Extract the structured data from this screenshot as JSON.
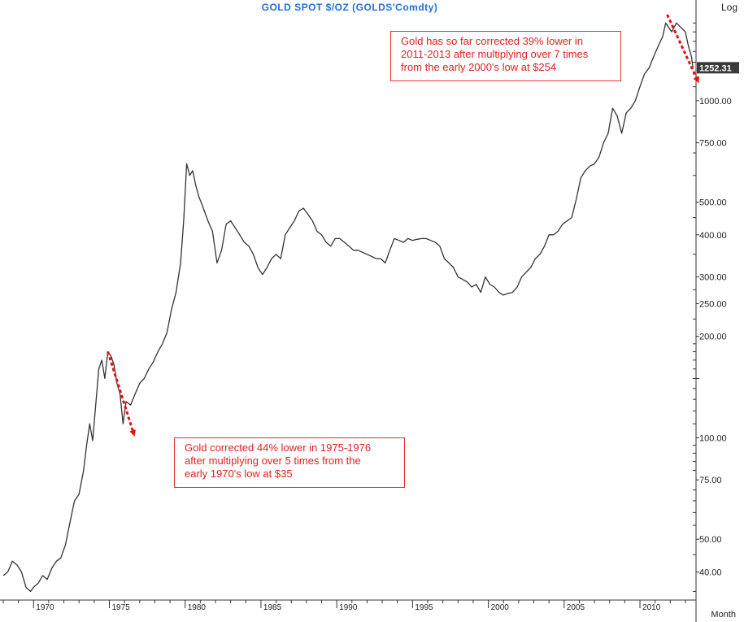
{
  "chart_data": {
    "type": "line",
    "title": "GOLD  SPOT  $/OZ  (GOLDS'Comdty)",
    "scale_label": "Log",
    "x_axis_label": "Month",
    "y_scale": "log",
    "ylim": [
      33,
      1800
    ],
    "xlim": [
      1968.0,
      2013.7
    ],
    "y_ticks": [
      40,
      50,
      75,
      100,
      150,
      200,
      250,
      300,
      400,
      500,
      750,
      1000
    ],
    "y_tick_labels": [
      "40.00",
      "50.00",
      "75.00",
      "100.00",
      "",
      "200.00",
      "250.00",
      "300.00",
      "400.00",
      "500.00",
      "750.00",
      "1000.00"
    ],
    "x_ticks": [
      1970,
      1975,
      1980,
      1985,
      1990,
      1995,
      2000,
      2005,
      2010
    ],
    "x_tick_labels": [
      "1970",
      "1975",
      "1980",
      "1985",
      "1990",
      "1995",
      "2000",
      "2005",
      "2010"
    ],
    "last_value_label": "1252.31",
    "last_value": 1252.31,
    "series": [
      {
        "x": [
          1968.0,
          1968.3,
          1968.6,
          1968.9,
          1969.2,
          1969.5,
          1969.8,
          1970.0,
          1970.3,
          1970.6,
          1970.9,
          1971.2,
          1971.5,
          1971.8,
          1972.1,
          1972.4,
          1972.7,
          1973.0,
          1973.3,
          1973.5,
          1973.7,
          1973.9,
          1974.1,
          1974.3,
          1974.5,
          1974.7,
          1974.9,
          1975.1,
          1975.3,
          1975.5,
          1975.7,
          1975.9,
          1976.1,
          1976.4,
          1976.7,
          1977.0,
          1977.3,
          1977.6,
          1977.9,
          1978.2,
          1978.5,
          1978.8,
          1979.1,
          1979.4,
          1979.7,
          1979.9,
          1980.1,
          1980.3,
          1980.5,
          1980.7,
          1980.9,
          1981.2,
          1981.5,
          1981.8,
          1982.1,
          1982.4,
          1982.7,
          1983.0,
          1983.3,
          1983.6,
          1983.9,
          1984.2,
          1984.5,
          1984.8,
          1985.1,
          1985.4,
          1985.7,
          1986.0,
          1986.3,
          1986.6,
          1986.9,
          1987.2,
          1987.5,
          1987.8,
          1988.1,
          1988.4,
          1988.7,
          1989.0,
          1989.3,
          1989.6,
          1989.9,
          1990.2,
          1990.5,
          1990.8,
          1991.1,
          1991.4,
          1991.7,
          1992.0,
          1992.3,
          1992.6,
          1992.9,
          1993.2,
          1993.5,
          1993.8,
          1994.1,
          1994.4,
          1994.7,
          1995.0,
          1995.3,
          1995.6,
          1995.9,
          1996.2,
          1996.5,
          1996.8,
          1997.1,
          1997.4,
          1997.7,
          1998.0,
          1998.3,
          1998.6,
          1998.9,
          1999.2,
          1999.5,
          1999.8,
          2000.1,
          2000.4,
          2000.7,
          2001.0,
          2001.3,
          2001.6,
          2001.9,
          2002.2,
          2002.5,
          2002.8,
          2003.1,
          2003.4,
          2003.7,
          2004.0,
          2004.3,
          2004.6,
          2004.9,
          2005.2,
          2005.5,
          2005.8,
          2006.1,
          2006.4,
          2006.7,
          2007.0,
          2007.3,
          2007.6,
          2007.9,
          2008.2,
          2008.5,
          2008.8,
          2009.1,
          2009.4,
          2009.7,
          2010.0,
          2010.3,
          2010.6,
          2010.9,
          2011.2,
          2011.5,
          2011.7,
          2011.9,
          2012.1,
          2012.4,
          2012.7,
          2013.0,
          2013.2,
          2013.4,
          2013.5
        ],
        "values": [
          39,
          40,
          43,
          42,
          40,
          36,
          35,
          36,
          37,
          39,
          38,
          41,
          43,
          44,
          48,
          56,
          65,
          68,
          80,
          95,
          110,
          98,
          125,
          160,
          170,
          150,
          180,
          175,
          165,
          145,
          135,
          110,
          128,
          125,
          135,
          145,
          150,
          160,
          168,
          180,
          190,
          205,
          240,
          270,
          330,
          440,
          650,
          600,
          620,
          560,
          520,
          480,
          440,
          410,
          330,
          360,
          430,
          440,
          420,
          400,
          380,
          370,
          350,
          320,
          305,
          320,
          340,
          350,
          340,
          400,
          420,
          440,
          470,
          480,
          460,
          440,
          410,
          400,
          380,
          370,
          390,
          390,
          380,
          370,
          360,
          360,
          355,
          350,
          345,
          340,
          340,
          330,
          360,
          390,
          385,
          380,
          390,
          385,
          388,
          390,
          390,
          385,
          380,
          370,
          340,
          330,
          320,
          300,
          295,
          290,
          280,
          285,
          270,
          300,
          285,
          280,
          270,
          265,
          268,
          270,
          280,
          300,
          310,
          320,
          340,
          350,
          370,
          400,
          400,
          410,
          430,
          440,
          450,
          510,
          590,
          620,
          640,
          650,
          680,
          750,
          800,
          950,
          900,
          800,
          920,
          950,
          1000,
          1100,
          1200,
          1250,
          1350,
          1450,
          1550,
          1700,
          1650,
          1600,
          1700,
          1650,
          1600,
          1450,
          1350,
          1252.31
        ]
      }
    ],
    "arrows": [
      {
        "from_x": 1974.9,
        "from_y": 180,
        "to_x": 1976.6,
        "to_y": 103
      },
      {
        "from_x": 2011.8,
        "from_y": 1800,
        "to_x": 2013.8,
        "to_y": 1150
      }
    ],
    "annotations": [
      {
        "lines": [
          "Gold has so far corrected 39% lower in",
          "2011-2013 after multiplying over 7 times",
          "from the early 2000's low at $254"
        ]
      },
      {
        "lines": [
          "Gold corrected 44% lower in 1975-1976",
          "after multiplying over 5 times from the",
          "early 1970's low at $35"
        ]
      }
    ],
    "colors": {
      "line": "#333333",
      "title": "#1f6fd6",
      "annotation": "#e02020",
      "arrow": "#e81010",
      "frame": "#333333"
    }
  }
}
